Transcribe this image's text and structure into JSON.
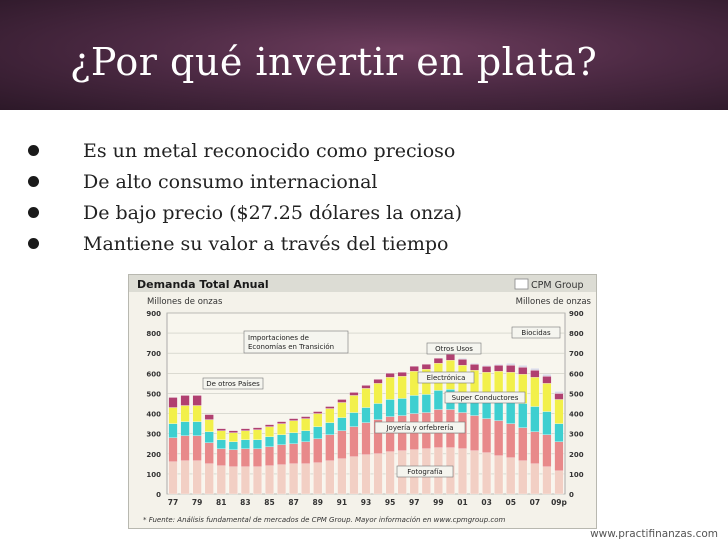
{
  "slide": {
    "title": "¿Por qué invertir en plata?",
    "bullets": [
      "Es un metal reconocido como precioso",
      "De alto consumo internacional",
      "De bajo precio ($27.25 dólares la onza)",
      "Mantiene su valor a través del tiempo"
    ],
    "footer_url": "www.practifinanzas.com"
  },
  "chart_data": {
    "type": "bar",
    "stacked": true,
    "title": "Demanda Total Anual",
    "logo_text": "CPM Group",
    "ylabel_left": "Millones de onzas",
    "ylabel_right": "Millones de onzas",
    "ylim": [
      0,
      900
    ],
    "yticks": [
      0,
      100,
      200,
      300,
      400,
      500,
      600,
      700,
      800,
      900
    ],
    "xtick_labels": [
      "77",
      "79",
      "81",
      "83",
      "85",
      "87",
      "89",
      "91",
      "93",
      "95",
      "97",
      "99",
      "01",
      "03",
      "05",
      "07",
      "09p"
    ],
    "footnote": "* Fuente: Análisis fundamental de mercados de CPM Group.  Mayor información en www.cpmgroup.com",
    "categories": [
      "77",
      "78",
      "79",
      "80",
      "81",
      "82",
      "83",
      "84",
      "85",
      "86",
      "87",
      "88",
      "89",
      "90",
      "91",
      "92",
      "93",
      "94",
      "95",
      "96",
      "97",
      "98",
      "99",
      "00",
      "01",
      "02",
      "03",
      "04",
      "05",
      "06",
      "07",
      "08",
      "09p"
    ],
    "series": [
      {
        "name": "Fotografía",
        "color": "#f2cfc4",
        "values": [
          160,
          165,
          165,
          150,
          140,
          135,
          135,
          135,
          140,
          145,
          150,
          150,
          155,
          165,
          175,
          185,
          195,
          200,
          210,
          215,
          220,
          225,
          230,
          230,
          225,
          215,
          205,
          190,
          180,
          165,
          150,
          135,
          115
        ]
      },
      {
        "name": "Joyería y orfebrería",
        "color": "#e8898a",
        "values": [
          120,
          125,
          125,
          105,
          85,
          85,
          90,
          90,
          95,
          100,
          100,
          110,
          120,
          130,
          140,
          150,
          160,
          170,
          175,
          175,
          180,
          180,
          190,
          190,
          180,
          175,
          170,
          175,
          170,
          165,
          160,
          160,
          145
        ]
      },
      {
        "name": "Super Conductores",
        "color": "#3ecfd0",
        "values": [
          70,
          70,
          70,
          55,
          45,
          40,
          45,
          45,
          50,
          50,
          55,
          55,
          60,
          60,
          65,
          70,
          75,
          80,
          85,
          85,
          90,
          90,
          95,
          100,
          95,
          90,
          95,
          105,
          115,
          120,
          125,
          115,
          90
        ]
      },
      {
        "name": "Electrónica",
        "color": "#f2f04a",
        "values": [
          80,
          80,
          80,
          60,
          45,
          45,
          45,
          50,
          50,
          55,
          60,
          60,
          65,
          70,
          75,
          85,
          95,
          100,
          110,
          110,
          120,
          125,
          135,
          145,
          140,
          135,
          135,
          140,
          140,
          145,
          145,
          140,
          120
        ]
      },
      {
        "name": "Otros Usos",
        "color": "#b04070",
        "values": [
          50,
          50,
          50,
          25,
          10,
          10,
          10,
          10,
          10,
          10,
          10,
          10,
          10,
          10,
          15,
          15,
          15,
          20,
          20,
          20,
          25,
          25,
          25,
          30,
          30,
          30,
          30,
          30,
          35,
          35,
          35,
          35,
          30
        ]
      },
      {
        "name": "Biocidas",
        "color": "#d9d9e6",
        "values": [
          0,
          0,
          0,
          0,
          0,
          0,
          0,
          0,
          0,
          0,
          0,
          0,
          0,
          0,
          0,
          0,
          0,
          0,
          0,
          0,
          0,
          0,
          0,
          5,
          5,
          5,
          5,
          5,
          10,
          10,
          10,
          10,
          10
        ]
      }
    ],
    "annotations": [
      {
        "text": "Importaciones de Economías en Transición"
      },
      {
        "text": "De otros Países"
      },
      {
        "text": "Otros Usos"
      },
      {
        "text": "Biocidas"
      },
      {
        "text": "Electrónica"
      },
      {
        "text": "Super Conductores"
      },
      {
        "text": "Joyería y orfebrería"
      },
      {
        "text": "Fotografía"
      }
    ]
  }
}
